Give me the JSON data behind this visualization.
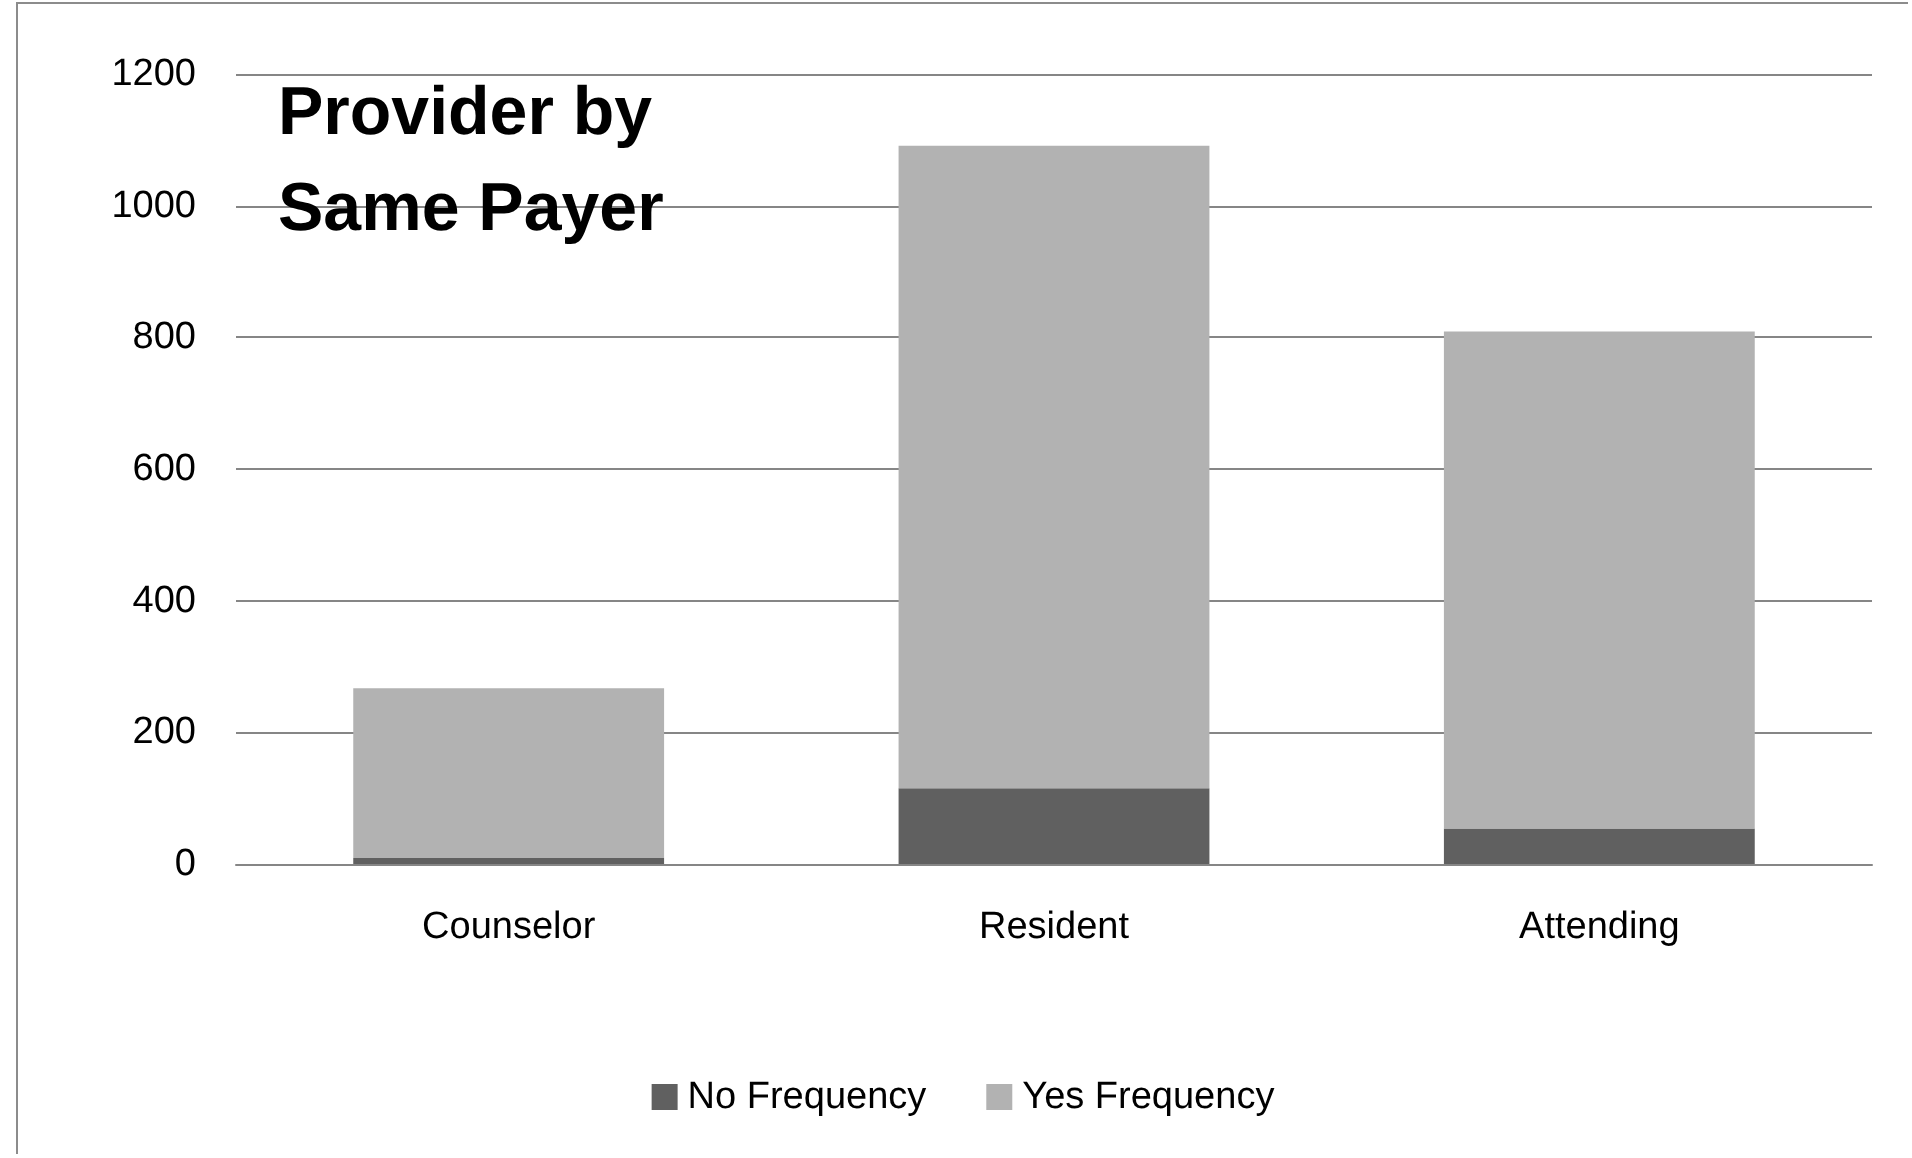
{
  "chart_data": {
    "type": "bar",
    "title": "Provider by Same Payer",
    "categories": [
      "Counselor",
      "Resident",
      "Attending"
    ],
    "series": [
      {
        "name": "No Frequency",
        "color": "#606060",
        "values": [
          9,
          115,
          54
        ]
      },
      {
        "name": "Yes Frequency",
        "color": "#b2b2b2",
        "values": [
          258,
          976,
          755
        ]
      }
    ],
    "stacked": true,
    "ylim": [
      0,
      1200
    ],
    "yticks": [
      0,
      200,
      400,
      600,
      800,
      1000,
      1200
    ],
    "grid": "y",
    "legend": "bottom"
  }
}
